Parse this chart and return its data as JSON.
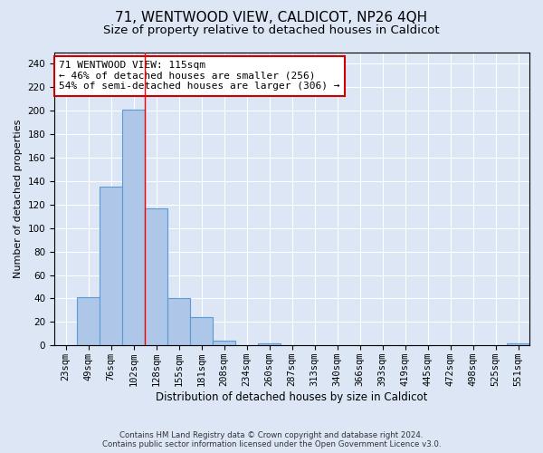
{
  "title1": "71, WENTWOOD VIEW, CALDICOT, NP26 4QH",
  "title2": "Size of property relative to detached houses in Caldicot",
  "xlabel": "Distribution of detached houses by size in Caldicot",
  "ylabel": "Number of detached properties",
  "annotation_line1": "71 WENTWOOD VIEW: 115sqm",
  "annotation_line2": "← 46% of detached houses are smaller (256)",
  "annotation_line3": "54% of semi-detached houses are larger (306) →",
  "footer1": "Contains HM Land Registry data © Crown copyright and database right 2024.",
  "footer2": "Contains public sector information licensed under the Open Government Licence v3.0.",
  "categories": [
    "23sqm",
    "49sqm",
    "76sqm",
    "102sqm",
    "128sqm",
    "155sqm",
    "181sqm",
    "208sqm",
    "234sqm",
    "260sqm",
    "287sqm",
    "313sqm",
    "340sqm",
    "366sqm",
    "393sqm",
    "419sqm",
    "445sqm",
    "472sqm",
    "498sqm",
    "525sqm",
    "551sqm"
  ],
  "values": [
    0,
    41,
    135,
    201,
    117,
    40,
    24,
    4,
    0,
    2,
    0,
    0,
    0,
    0,
    0,
    0,
    0,
    0,
    0,
    0,
    2
  ],
  "bar_color": "#aec6e8",
  "bar_edge_color": "#5b9bd5",
  "red_line_x": 3.5,
  "ylim": [
    0,
    250
  ],
  "yticks": [
    0,
    20,
    40,
    60,
    80,
    100,
    120,
    140,
    160,
    180,
    200,
    220,
    240
  ],
  "bg_color": "#dce6f5",
  "plot_bg_color": "#dce6f5",
  "grid_color": "#ffffff",
  "annotation_box_color": "#ffffff",
  "annotation_box_edge": "#cc0000",
  "title1_fontsize": 11,
  "title2_fontsize": 9.5,
  "annotation_fontsize": 8,
  "tick_fontsize": 7.5,
  "ylabel_fontsize": 8,
  "xlabel_fontsize": 8.5
}
